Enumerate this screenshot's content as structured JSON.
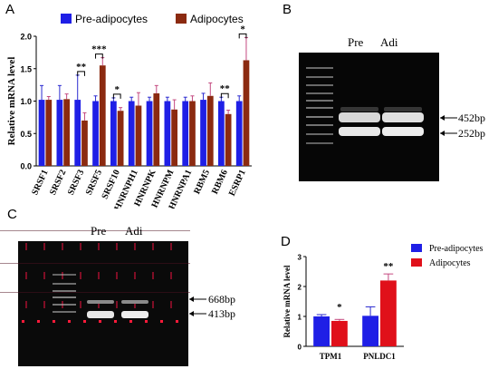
{
  "panels": {
    "a": "A",
    "b": "B",
    "c": "C",
    "d": "D"
  },
  "colors": {
    "pre": "#1f1fe6",
    "adi": "#8b2a10",
    "adi_d": "#e0101a",
    "error_pink": "#ff66cc",
    "gel_bg": "#050505",
    "band": "#ededed"
  },
  "chart_data": [
    {
      "id": "A",
      "type": "bar",
      "ylabel": "Relative mRNA level",
      "ylim": [
        0,
        2.0
      ],
      "yticks": [
        0.0,
        0.5,
        1.0,
        1.5,
        2.0
      ],
      "categories": [
        "SRSF1",
        "SRSF2",
        "SRSF3",
        "SRSF5",
        "SRSF10",
        "HNRNPH1",
        "HNRNPK",
        "HNRNPM",
        "HNRNPA1",
        "RBM5",
        "RBM6",
        "ESRP1"
      ],
      "series": [
        {
          "name": "Pre-adipocytes",
          "color": "#1f1fe6",
          "values": [
            1.02,
            1.02,
            1.02,
            1.0,
            1.0,
            1.0,
            1.0,
            1.0,
            1.0,
            1.02,
            1.0,
            1.0
          ],
          "errors": [
            0.22,
            0.22,
            0.38,
            0.08,
            0.05,
            0.06,
            0.06,
            0.06,
            0.06,
            0.1,
            0.06,
            0.08
          ]
        },
        {
          "name": "Adipocytes",
          "color": "#8b2a10",
          "values": [
            1.02,
            1.03,
            0.7,
            1.55,
            0.85,
            0.93,
            1.12,
            0.87,
            1.0,
            1.08,
            0.8,
            1.63
          ],
          "errors": [
            0.05,
            0.08,
            0.12,
            0.12,
            0.05,
            0.2,
            0.12,
            0.15,
            0.08,
            0.2,
            0.06,
            0.35
          ]
        }
      ],
      "significance": [
        {
          "category": "SRSF3",
          "label": "**"
        },
        {
          "category": "SRSF5",
          "label": "***"
        },
        {
          "category": "SRSF10",
          "label": "*"
        },
        {
          "category": "RBM6",
          "label": "**"
        },
        {
          "category": "ESRP1",
          "label": "*"
        }
      ],
      "legend": "top"
    },
    {
      "id": "D",
      "type": "bar",
      "ylabel": "Relative mRNA level",
      "ylim": [
        0,
        3
      ],
      "yticks": [
        0,
        1,
        2,
        3
      ],
      "categories": [
        "TPM1",
        "PNLDC1"
      ],
      "series": [
        {
          "name": "Pre-adipocytes",
          "color": "#1f1fe6",
          "values": [
            1.0,
            1.02
          ],
          "errors": [
            0.06,
            0.3
          ]
        },
        {
          "name": "Adipocytes",
          "color": "#e0101a",
          "values": [
            0.85,
            2.2
          ],
          "errors": [
            0.05,
            0.22
          ]
        }
      ],
      "significance": [
        {
          "category": "TPM1",
          "label": "*"
        },
        {
          "category": "PNLDC1",
          "label": "**"
        }
      ],
      "legend": "top-right"
    }
  ],
  "gel_b": {
    "lanes": [
      "Pre",
      "Adi"
    ],
    "bands": [
      "452bp",
      "252bp"
    ]
  },
  "gel_c": {
    "lanes": [
      "Pre",
      "Adi"
    ],
    "bands": [
      "668bp",
      "413bp"
    ]
  }
}
